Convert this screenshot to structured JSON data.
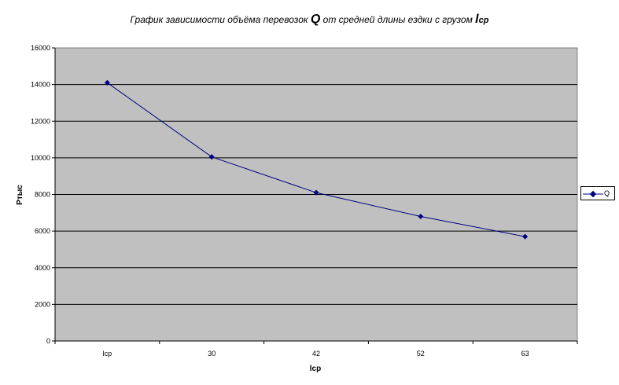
{
  "chart_data": {
    "type": "line",
    "title_parts": [
      "График зависимости объёма перевозок ",
      "Q",
      " от средней длины ездки с грузом ",
      "l",
      "ср"
    ],
    "categories": [
      "lcp",
      "30",
      "42",
      "52",
      "63"
    ],
    "series": [
      {
        "name": "Q",
        "values": [
          14100,
          10050,
          8100,
          6800,
          5700
        ],
        "color": "#000080"
      }
    ],
    "xlabel": "lcp",
    "ylabel": "Pтыс",
    "ylim": [
      0,
      16000
    ],
    "yticks": [
      0,
      2000,
      4000,
      6000,
      8000,
      10000,
      12000,
      14000,
      16000
    ],
    "grid": true,
    "legend_position": "right",
    "plot_background": "#c0c0c0"
  }
}
